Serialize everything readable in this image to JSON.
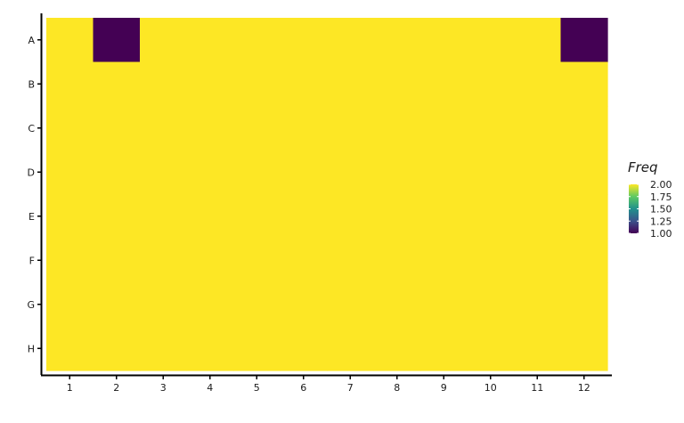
{
  "chart_data": {
    "type": "heatmap",
    "x_categories": [
      "1",
      "2",
      "3",
      "4",
      "5",
      "6",
      "7",
      "8",
      "9",
      "10",
      "11",
      "12"
    ],
    "y_categories": [
      "A",
      "B",
      "C",
      "D",
      "E",
      "F",
      "G",
      "H"
    ],
    "values": [
      [
        2,
        1,
        2,
        2,
        2,
        2,
        2,
        2,
        2,
        2,
        2,
        1
      ],
      [
        2,
        2,
        2,
        2,
        2,
        2,
        2,
        2,
        2,
        2,
        2,
        2
      ],
      [
        2,
        2,
        2,
        2,
        2,
        2,
        2,
        2,
        2,
        2,
        2,
        2
      ],
      [
        2,
        2,
        2,
        2,
        2,
        2,
        2,
        2,
        2,
        2,
        2,
        2
      ],
      [
        2,
        2,
        2,
        2,
        2,
        2,
        2,
        2,
        2,
        2,
        2,
        2
      ],
      [
        2,
        2,
        2,
        2,
        2,
        2,
        2,
        2,
        2,
        2,
        2,
        2
      ],
      [
        2,
        2,
        2,
        2,
        2,
        2,
        2,
        2,
        2,
        2,
        2,
        2
      ],
      [
        2,
        2,
        2,
        2,
        2,
        2,
        2,
        2,
        2,
        2,
        2,
        2
      ]
    ],
    "legend": {
      "title": "Freq",
      "range": [
        1.0,
        2.0
      ],
      "ticks": [
        "2.00",
        "1.75",
        "1.50",
        "1.25",
        "1.00"
      ],
      "tick_values": [
        2.0,
        1.75,
        1.5,
        1.25,
        1.0
      ],
      "placement": "right"
    },
    "colormap": "viridis",
    "colors": {
      "low": "#440154",
      "high": "#fde725"
    }
  }
}
